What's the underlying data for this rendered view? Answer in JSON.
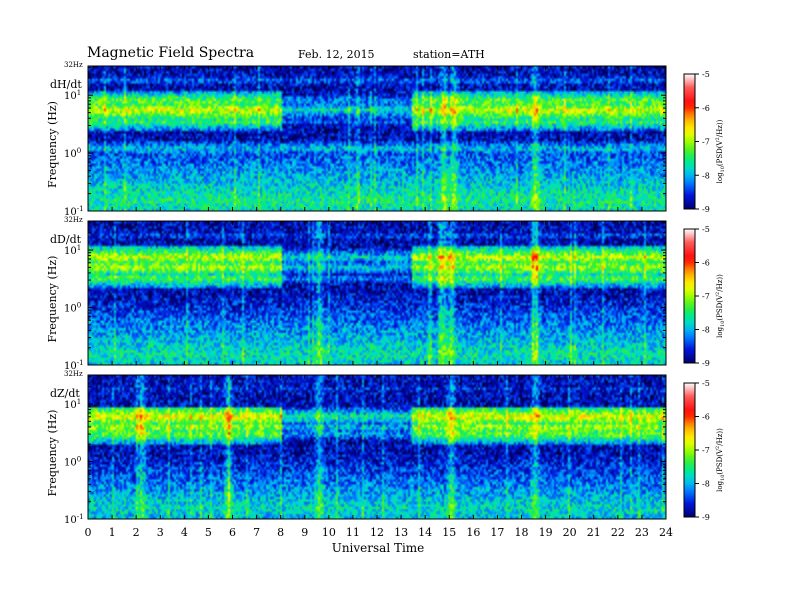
{
  "header": {
    "title": "Magnetic  Field  Spectra",
    "date": "Feb. 12, 2015",
    "station": "station=ATH"
  },
  "axes": {
    "xlabel": "Universal Time",
    "ylabel": "Frequency  (Hz)",
    "x_ticks": [
      "0",
      "1",
      "2",
      "3",
      "4",
      "5",
      "6",
      "7",
      "8",
      "9",
      "10",
      "11",
      "12",
      "13",
      "14",
      "15",
      "16",
      "17",
      "18",
      "19",
      "20",
      "21",
      "22",
      "23",
      "24"
    ],
    "top_freq_label": "32Hz",
    "y_ticks": [
      {
        "base": "10",
        "exp": "1",
        "value": 10
      },
      {
        "base": "10",
        "exp": "0",
        "value": 1
      },
      {
        "base": "10",
        "exp": "-1",
        "value": 0.1
      }
    ]
  },
  "colorbar": {
    "label": "log10(PSD(V^2/Hz))",
    "label_parts": {
      "a": "log",
      "sub": "10",
      "b": "(PSD(V",
      "sup": "2",
      "c": "/Hz))"
    },
    "ticks": [
      "-5",
      "-6",
      "-7",
      "-8",
      "-9"
    ],
    "range": [
      -9,
      -5
    ],
    "colors": [
      "#ffffff",
      "#ff4a4a",
      "#ff0000",
      "#ffa500",
      "#ffff00",
      "#7fff00",
      "#00ee00",
      "#00e0b0",
      "#00b8ff",
      "#0050ff",
      "#0000c8",
      "#000040",
      "#000000"
    ]
  },
  "chart_data": {
    "type": "heatmap",
    "title": "Magnetic  Field  Spectra",
    "xlabel": "Universal Time",
    "ylabel": "Frequency  (Hz)",
    "xlim": [
      0,
      24
    ],
    "ylim_hz": [
      0.1,
      32
    ],
    "y_scale": "log",
    "color_scale": "log10(PSD(V^2/Hz))",
    "zlim": [
      -9,
      -5
    ],
    "panels": [
      {
        "name": "dH/dt",
        "bands": [
          {
            "hz": 28,
            "level": -8.8
          },
          {
            "hz": 18,
            "level": -8.3
          },
          {
            "hz": 8,
            "level": -7.2
          },
          {
            "hz": 5.5,
            "level": -6.8
          },
          {
            "hz": 3.5,
            "level": -7.4
          },
          {
            "hz": 1.2,
            "level": -7.9
          },
          {
            "hz": 0.15,
            "level": -7.6
          }
        ],
        "events_ut": [
          14.8,
          15.2,
          18.6
        ]
      },
      {
        "name": "dD/dt",
        "bands": [
          {
            "hz": 28,
            "level": -8.8
          },
          {
            "hz": 18,
            "level": -8.4
          },
          {
            "hz": 7.5,
            "level": -6.9
          },
          {
            "hz": 5,
            "level": -7.0
          },
          {
            "hz": 3.2,
            "level": -7.3
          },
          {
            "hz": 0.15,
            "level": -7.7
          }
        ],
        "events_ut": [
          9.6,
          14.8,
          15.1,
          18.6
        ]
      },
      {
        "name": "dZ/dt",
        "bands": [
          {
            "hz": 28,
            "level": -9.0
          },
          {
            "hz": 18,
            "level": -8.5
          },
          {
            "hz": 6,
            "level": -6.7
          },
          {
            "hz": 4,
            "level": -7.0
          },
          {
            "hz": 3,
            "level": -7.2
          },
          {
            "hz": 0.15,
            "level": -7.8
          }
        ],
        "events_ut": [
          2.2,
          5.8,
          9.6,
          15.1,
          18.6
        ]
      }
    ]
  }
}
